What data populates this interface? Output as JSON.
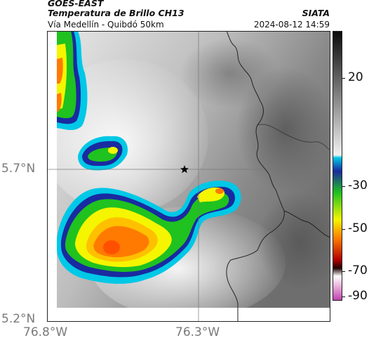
{
  "header": {
    "satellite": "GOES-EAST",
    "product": "Temperatura de Brillo CH13",
    "route": "Vía Medellín - Quibdó 50km",
    "agency": "SIATA",
    "datetime": "2024-08-12 14:59"
  },
  "map": {
    "lat_labels": [
      "5.7°N",
      "5.2°N"
    ],
    "lon_labels": [
      "76.8°W",
      "76.3°W"
    ],
    "marker": "star-marker",
    "gridlines": true,
    "border_color": "#222222"
  },
  "colorbar": {
    "unit_values": [
      20,
      -30,
      -50,
      -70,
      -90
    ],
    "labels": [
      "20",
      "-30",
      "-50",
      "-70",
      "-90"
    ],
    "colors": {
      "warm_top": "#111111",
      "warm_bottom": "#f2f2f2",
      "cyan": "#00c8e6",
      "blue": "#1a2aa0",
      "green": "#1fc21f",
      "yellow": "#f5f500",
      "orange": "#ff7a00",
      "red": "#b00000",
      "dark": "#200000",
      "magenta": "#c040b0"
    }
  }
}
